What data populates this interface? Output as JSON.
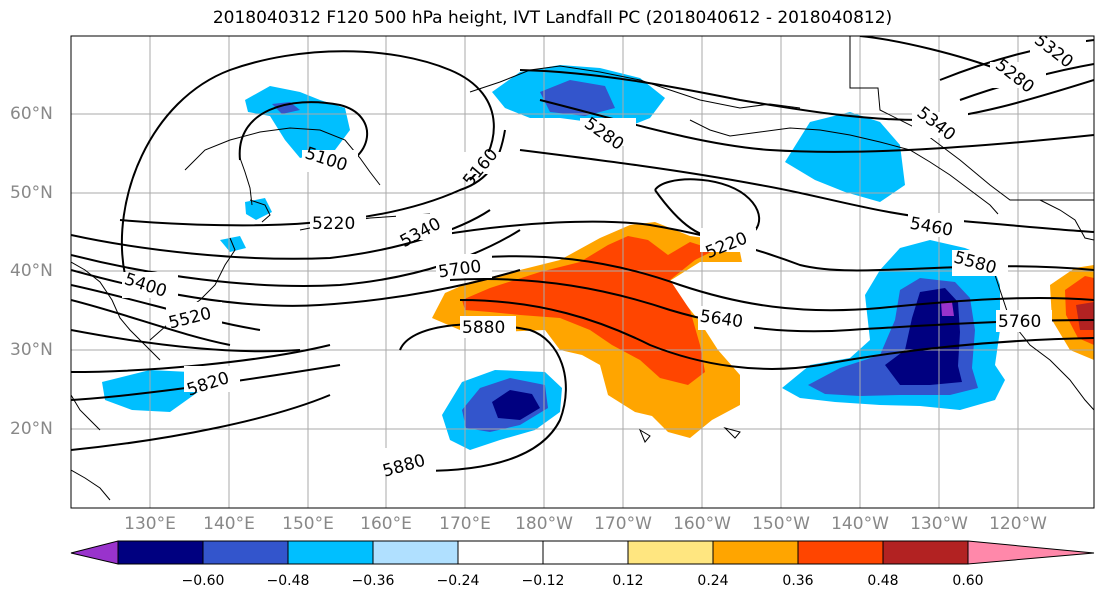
{
  "title": "2018040312 F120 500 hPa height, IVT Landfall PC (2018040612 - 2018040812)",
  "lat_labels": [
    "60°N",
    "50°N",
    "40°N",
    "30°N",
    "20°N"
  ],
  "lon_labels": [
    "130°E",
    "140°E",
    "150°E",
    "160°E",
    "170°E",
    "180°W",
    "170°W",
    "160°W",
    "150°W",
    "140°W",
    "130°W",
    "120°W"
  ],
  "contour_labels": [
    "5100",
    "5160",
    "5220",
    "5220",
    "5280",
    "5280",
    "5320",
    "5340",
    "5340",
    "5400",
    "5460",
    "5520",
    "5580",
    "5640",
    "5700",
    "5760",
    "5820",
    "5880",
    "5880"
  ],
  "colorbar": {
    "ticks": [
      "−0.60",
      "−0.48",
      "−0.36",
      "−0.24",
      "−0.12",
      "0.12",
      "0.24",
      "0.36",
      "0.48",
      "0.60"
    ],
    "colors": [
      "#9933cc",
      "#000080",
      "#3355cc",
      "#00bfff",
      "#b0e0ff",
      "#ffffff",
      "#ffe680",
      "#ffa500",
      "#ff4500",
      "#b22222",
      "#ff88aa"
    ]
  }
}
